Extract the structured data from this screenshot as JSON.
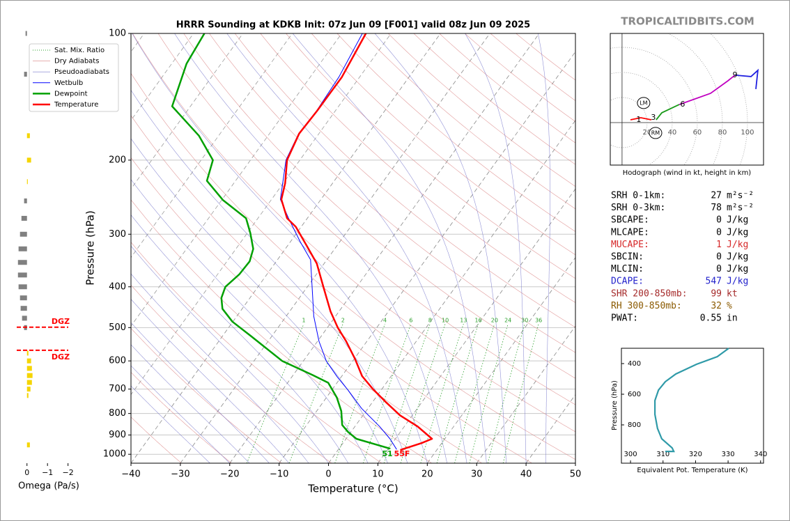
{
  "watermark": "TROPICALTIDBITS.COM",
  "chart_data": [
    {
      "type": "skewt",
      "title": "HRRR Sounding at KDKB Init: 07z Jun 09 [F001] valid 08z Jun 09 2025",
      "xlabel": "Temperature (°C)",
      "ylabel": "Pressure (hPa)",
      "xlim": [
        -40,
        50
      ],
      "ylim": [
        1050,
        100
      ],
      "yscale": "log",
      "xticks": [
        {
          "value": -40,
          "label": "−40"
        },
        {
          "value": -30,
          "label": "−30"
        },
        {
          "value": -20,
          "label": "−20"
        },
        {
          "value": -10,
          "label": "−10"
        },
        0,
        10,
        20,
        30,
        40,
        50
      ],
      "yticks": [
        100,
        200,
        300,
        400,
        500,
        600,
        700,
        800,
        900,
        1000
      ],
      "mixing_ratios": [
        1,
        2,
        4,
        6,
        8,
        10,
        13,
        16,
        20,
        24,
        30,
        36
      ],
      "reference_lines": [
        {
          "name": "Sat. Mix. Ratio",
          "color": "#2ca02c"
        },
        {
          "name": "Dry Adiabats",
          "color": "#d98080"
        },
        {
          "name": "Pseudoadiabats",
          "color": "#7777cc"
        }
      ],
      "series": [
        {
          "name": "Wetbulb",
          "color": "#0000ff",
          "pressure": [
            974,
            919,
            859,
            778,
            704,
            655,
            601,
            539,
            470,
            345,
            312,
            275,
            248,
            200,
            173,
            153,
            127,
            100
          ],
          "values": [
            11.8,
            8.9,
            5.0,
            -1.3,
            -6.7,
            -10.8,
            -15.3,
            -19.7,
            -24.4,
            -33.3,
            -38.1,
            -43.8,
            -48.2,
            -52.8,
            -54.1,
            -53.8,
            -54.2,
            -55.8
          ]
        },
        {
          "name": "Dewpoint",
          "color": "#00a000",
          "pressure": [
            970,
            919,
            885,
            852,
            790,
            733,
            676,
            648,
            600,
            524,
            484,
            451,
            425,
            400,
            374,
            348,
            325,
            298,
            275,
            249,
            224,
            200,
            175,
            149,
            118,
            100
          ],
          "values": [
            10.4,
            2.1,
            -0.6,
            -2.8,
            -5.0,
            -7.9,
            -11.8,
            -16.1,
            -24.3,
            -34.2,
            -40.1,
            -44.0,
            -45.8,
            -46.6,
            -45.6,
            -45.4,
            -46.5,
            -49.4,
            -52.4,
            -59.7,
            -65.8,
            -67.6,
            -74.0,
            -83.7,
            -87.0,
            -87.8
          ]
        },
        {
          "name": "Temperature",
          "color": "#ff0000",
          "pressure": [
            977,
            941,
            919,
            859,
            808,
            754,
            699,
            652,
            594,
            539,
            500,
            458,
            405,
            352,
            317,
            288,
            275,
            248,
            227,
            200,
            173,
            153,
            127,
            100
          ],
          "values": [
            12.6,
            15.9,
            17.4,
            12.7,
            7.5,
            2.9,
            -1.9,
            -5.9,
            -9.8,
            -14.2,
            -17.9,
            -21.7,
            -26.3,
            -31.5,
            -36.5,
            -41.1,
            -44.1,
            -48.0,
            -49.6,
            -52.6,
            -54.0,
            -53.7,
            -53.6,
            -55.1
          ]
        }
      ],
      "surface_labels": [
        {
          "text": "51",
          "color": "#00a000"
        },
        {
          "text": "55F",
          "color": "#ff0000"
        }
      ]
    },
    {
      "type": "hodograph",
      "caption": "Hodograph (wind in kt, height in km)",
      "xlim": [
        -9.4,
        112.8
      ],
      "ylim": [
        -33.9,
        71.1
      ],
      "rings": [
        20,
        40,
        60,
        80,
        100
      ],
      "segments": [
        {
          "color": "#ff0000",
          "u": [
            6.7,
            15.0,
            23.3
          ],
          "v": [
            2.2,
            3.9,
            2.2
          ]
        },
        {
          "color": "#1a9a1a",
          "u": [
            27.2,
            31.7,
            45.6
          ],
          "v": [
            2.2,
            7.8,
            14.4
          ]
        },
        {
          "color": "#c000c0",
          "u": [
            45.6,
            70.6,
            84.4,
            90.0
          ],
          "v": [
            14.4,
            23.3,
            33.3,
            37.8
          ]
        },
        {
          "color": "#2020e0",
          "u": [
            90.0,
            102.8,
            108.3,
            106.7
          ],
          "v": [
            37.8,
            36.7,
            41.7,
            26.7
          ]
        }
      ],
      "height_labels": [
        {
          "text": "1",
          "u": 13.3,
          "v": 2.2
        },
        {
          "text": "3",
          "u": 25.0,
          "v": 3.9
        },
        {
          "text": "6",
          "u": 48.3,
          "v": 14.4
        },
        {
          "text": "9",
          "u": 90.0,
          "v": 37.8
        }
      ],
      "markers": [
        {
          "text": "LM",
          "u": 17.2,
          "v": 15.6
        },
        {
          "text": "RM",
          "u": 26.7,
          "v": -8.3
        }
      ]
    },
    {
      "type": "profile",
      "xlabel": "Equivalent Pot. Temperature (K)",
      "ylabel": "Pressure (hPa)",
      "xlim": [
        297.2,
        340.9
      ],
      "ylim": [
        1050,
        300
      ],
      "xticks": [
        300,
        310,
        320,
        330,
        340
      ],
      "yticks": [
        400,
        600,
        800
      ],
      "color": "#2f9aa8",
      "values": [
        330.2,
        326.7,
        320.3,
        313.9,
        310.7,
        308.6,
        307.5,
        307.5,
        308.3,
        309.6,
        312.8,
        313.3,
        310.7
      ],
      "pressure": [
        300,
        354.5,
        404.5,
        468,
        518,
        573,
        641,
        732,
        823,
        891,
        950,
        973,
        973
      ]
    },
    {
      "type": "omega",
      "xlabel": "Omega (Pa/s)",
      "xlim": [
        0.5,
        -2.25
      ],
      "ylim": [
        1050,
        100
      ],
      "xticks": [
        0,
        {
          "value": -1,
          "label": "−1"
        },
        {
          "value": -2,
          "label": "−2"
        }
      ],
      "color_sinking": "#808080",
      "color_rising": "#f5d500",
      "pressure": [
        100,
        125,
        175,
        200,
        225,
        250,
        275,
        300,
        325,
        350,
        375,
        400,
        425,
        450,
        475,
        500,
        575,
        600,
        625,
        650,
        675,
        700,
        725,
        950
      ],
      "values": [
        0.07,
        0.14,
        -0.14,
        -0.2,
        -0.04,
        0.14,
        0.27,
        0.34,
        0.41,
        0.44,
        0.44,
        0.41,
        0.34,
        0.31,
        0.24,
        0.14,
        -0.07,
        -0.2,
        -0.24,
        -0.27,
        -0.24,
        -0.17,
        -0.07,
        -0.14
      ],
      "dgz": {
        "pressures": [
          499,
          566
        ],
        "labels": [
          "DGZ",
          "DGZ"
        ],
        "color": "#ff0000"
      }
    }
  ],
  "stats": {
    "rows": [
      {
        "label": "SRH 0-1km:",
        "value": 27,
        "unit": "m²s⁻²",
        "color": "#000000"
      },
      {
        "label": "SRH 0-3km:",
        "value": 78,
        "unit": "m²s⁻²",
        "color": "#000000"
      },
      {
        "label": "SBCAPE:",
        "value": 0,
        "unit": "J/kg",
        "color": "#000000"
      },
      {
        "label": "MLCAPE:",
        "value": 0,
        "unit": "J/kg",
        "color": "#000000"
      },
      {
        "label": "MUCAPE:",
        "value": 1,
        "unit": "J/kg",
        "color": "#d62728"
      },
      {
        "label": "SBCIN:",
        "value": 0,
        "unit": "J/kg",
        "color": "#000000"
      },
      {
        "label": "MLCIN:",
        "value": 0,
        "unit": "J/kg",
        "color": "#000000"
      },
      {
        "label": "DCAPE:",
        "value": 547,
        "unit": "J/kg",
        "color": "#2222cc"
      },
      {
        "label": "SHR 200-850mb:",
        "value": 99,
        "unit": "kt",
        "color": "#a52a2a"
      },
      {
        "label": "RH 300-850mb:",
        "value": 32,
        "unit": "%",
        "color": "#8b5a00"
      },
      {
        "label": "PWAT:",
        "value": 0.55,
        "unit": "in",
        "color": "#000000"
      }
    ]
  }
}
